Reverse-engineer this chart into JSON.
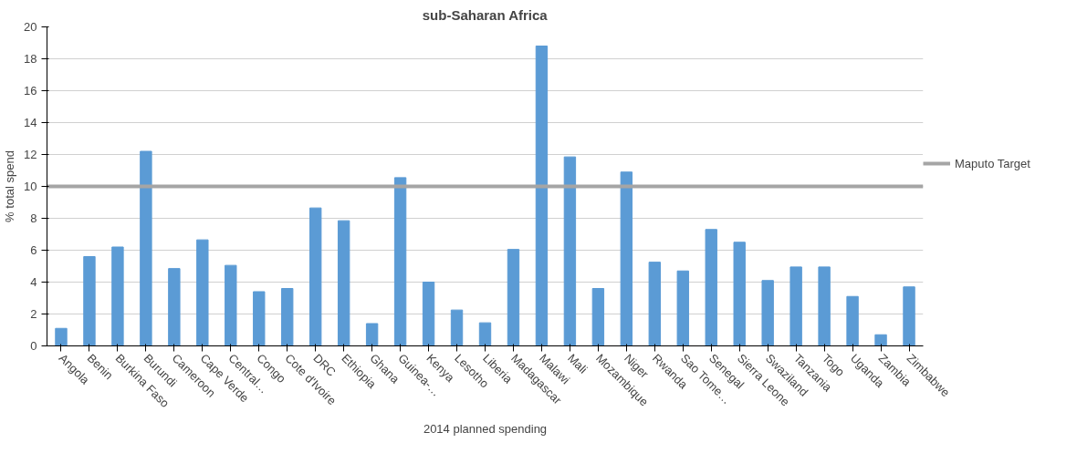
{
  "chart_data": {
    "type": "bar",
    "title": "sub-Saharan Africa",
    "xlabel": "2014 planned spending",
    "ylabel": "% total spend",
    "categories": [
      "Angola",
      "Benin",
      "Burkina Faso",
      "Burundi",
      "Cameroon",
      "Cape Verde",
      "Central…",
      "Congo",
      "Cote d'Ivoire",
      "DRC",
      "Ethiopia",
      "Ghana",
      "Guinea-…",
      "Kenya",
      "Lesotho",
      "Liberia",
      "Madagascar",
      "Malawi",
      "Mali",
      "Mozambique",
      "Niger",
      "Rwanda",
      "Sao Tome…",
      "Senegal",
      "Sierra Leone",
      "Swaziland",
      "Tanzania",
      "Togo",
      "Uganda",
      "Zambia",
      "Zimbabwe"
    ],
    "values": [
      1.1,
      5.6,
      6.2,
      12.2,
      4.85,
      6.65,
      5.05,
      3.4,
      3.6,
      8.65,
      7.85,
      1.4,
      10.55,
      4.0,
      2.25,
      1.45,
      6.05,
      18.8,
      11.85,
      3.6,
      10.9,
      5.25,
      4.7,
      7.3,
      6.5,
      4.1,
      4.95,
      4.95,
      3.1,
      0.7,
      3.7
    ],
    "color": "#5b9bd5",
    "ylim": [
      0,
      20
    ],
    "yticks": [
      0,
      2,
      4,
      6,
      8,
      10,
      12,
      14,
      16,
      18,
      20
    ],
    "grid": "y",
    "legend": "right",
    "ref_lines": [
      {
        "axis": "y",
        "value": 10,
        "label": "Maputo Target",
        "color": "#a5a5a5"
      }
    ]
  }
}
